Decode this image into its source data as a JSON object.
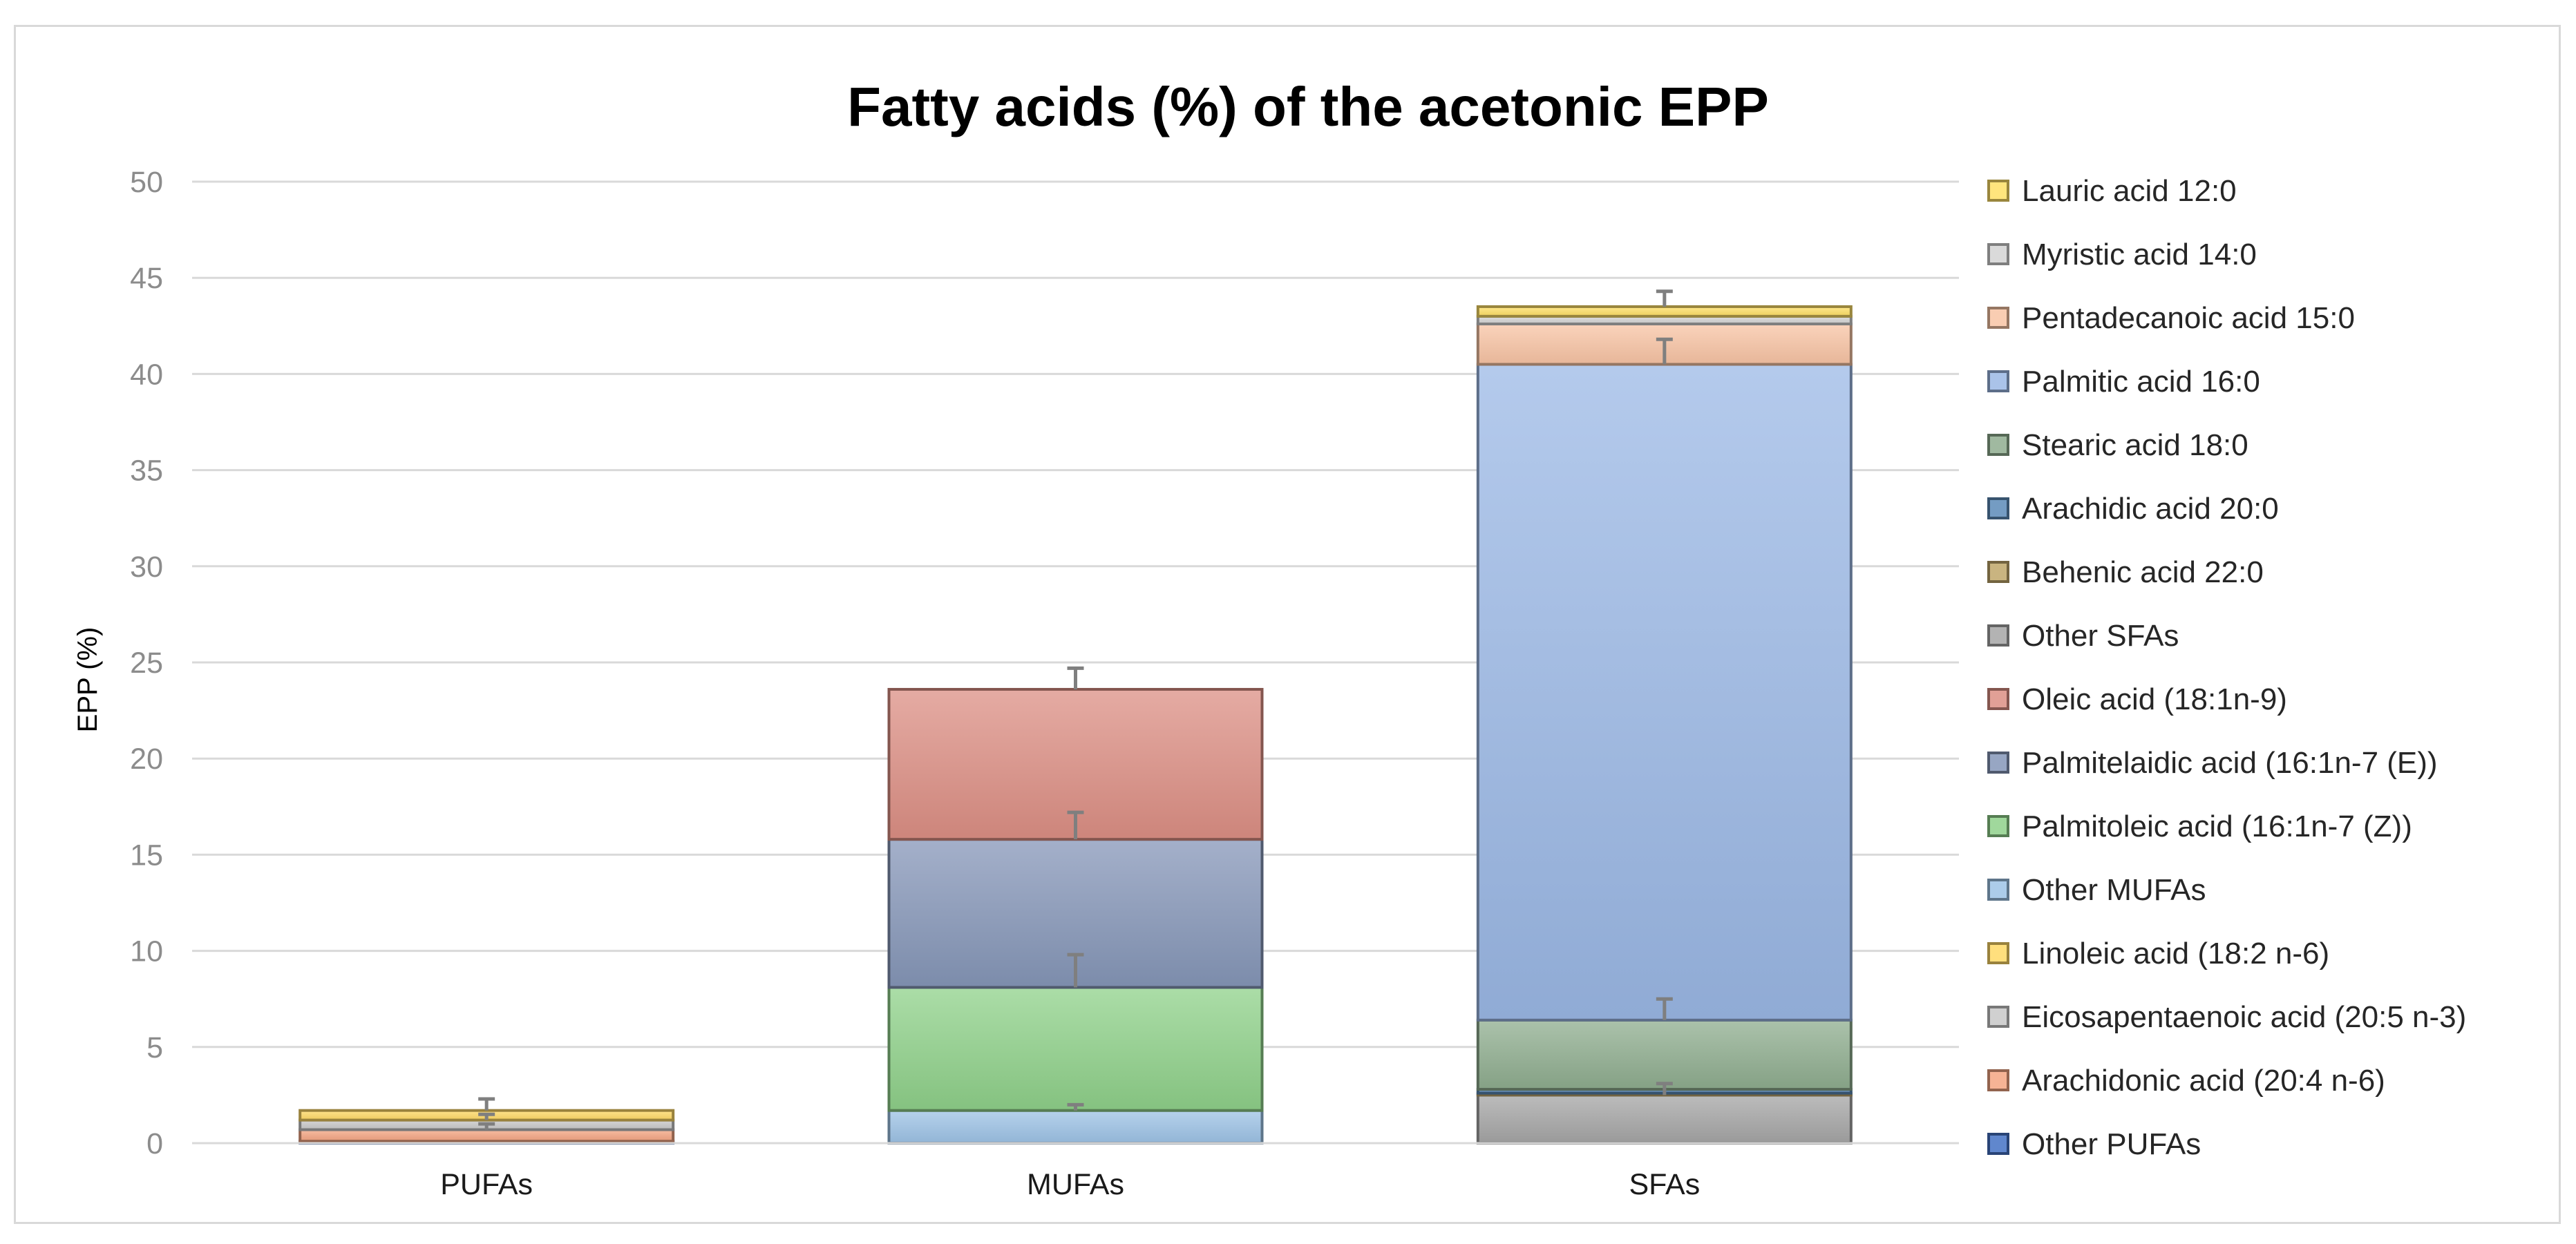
{
  "chart_data": {
    "type": "bar",
    "stacked": true,
    "title": "Fatty acids (%) of the acetonic EPP",
    "xlabel": "",
    "ylabel": "EPP (%)",
    "ylim": [
      0,
      50
    ],
    "yticks": [
      "0",
      "5",
      "10",
      "15",
      "20",
      "25",
      "30",
      "35",
      "40",
      "45",
      "50"
    ],
    "grid": true,
    "legend_position": "right",
    "categories": [
      "PUFAs",
      "MUFAs",
      "SFAs"
    ],
    "series": [
      {
        "name": "Other PUFAs",
        "color": "#4472c4",
        "values": [
          0.1,
          0,
          0
        ],
        "error": [
          0,
          0,
          0
        ]
      },
      {
        "name": "Arachidonic acid (20:4 n-6)",
        "color": "#f4a582",
        "values": [
          0.6,
          0,
          0
        ],
        "error": [
          0.3,
          0,
          0
        ]
      },
      {
        "name": "Eicosapentaenoic acid (20:5 n-3)",
        "color": "#c8c8c8",
        "values": [
          0.5,
          0,
          0
        ],
        "error": [
          0.3,
          0,
          0
        ]
      },
      {
        "name": "Linoleic acid (18:2 n-6)",
        "color": "#ffd966",
        "values": [
          0.5,
          0,
          0
        ],
        "error": [
          0.6,
          0,
          0
        ]
      },
      {
        "name": "Other MUFAs",
        "color": "#9dc3e6",
        "values": [
          0,
          1.7,
          0
        ],
        "error": [
          0,
          0.3,
          0
        ]
      },
      {
        "name": "Palmitoleic acid (16:1n-7 (Z))",
        "color": "#8fd18a",
        "values": [
          0,
          6.4,
          0
        ],
        "error": [
          0,
          1.7,
          0
        ]
      },
      {
        "name": "Palmitelaidic acid (16:1n-7 (E))",
        "color": "#8596b8",
        "values": [
          0,
          7.7,
          0
        ],
        "error": [
          0,
          1.4,
          0
        ]
      },
      {
        "name": "Oleic acid (18:1n-9)",
        "color": "#dc8f84",
        "values": [
          0,
          7.8,
          0
        ],
        "error": [
          0,
          1.1,
          0
        ]
      },
      {
        "name": "Other SFAs",
        "color": "#a6a6a6",
        "values": [
          0,
          0,
          2.5
        ],
        "error": [
          0,
          0,
          0.6
        ]
      },
      {
        "name": "Behenic acid 22:0",
        "color": "#bfa76a",
        "values": [
          0,
          0,
          0.1
        ],
        "error": [
          0,
          0,
          0
        ]
      },
      {
        "name": "Arachidic acid 20:0",
        "color": "#5b8ab8",
        "values": [
          0,
          0,
          0.2
        ],
        "error": [
          0,
          0,
          0
        ]
      },
      {
        "name": "Stearic acid 18:0",
        "color": "#8fad8f",
        "values": [
          0,
          0,
          3.6
        ],
        "error": [
          0,
          0,
          1.1
        ]
      },
      {
        "name": "Palmitic acid 16:0",
        "color": "#9bb8e5",
        "values": [
          0,
          0,
          34.1
        ],
        "error": [
          0,
          0,
          1.3
        ]
      },
      {
        "name": "Pentadecanoic acid 15:0",
        "color": "#f8c4a4",
        "values": [
          0,
          0,
          2.1
        ],
        "error": [
          0,
          0,
          0
        ]
      },
      {
        "name": "Myristic acid 14:0",
        "color": "#d3d3d3",
        "values": [
          0,
          0,
          0.4
        ],
        "error": [
          0,
          0,
          0
        ]
      },
      {
        "name": "Lauric acid 12:0",
        "color": "#ffe066",
        "values": [
          0,
          0,
          0.5
        ],
        "error": [
          0,
          0,
          0.8
        ]
      }
    ],
    "legend_order": [
      "Lauric acid 12:0",
      "Myristic acid 14:0",
      "Pentadecanoic acid 15:0",
      "Palmitic acid 16:0",
      "Stearic acid 18:0",
      "Arachidic acid 20:0",
      "Behenic acid 22:0",
      "Other SFAs",
      "Oleic acid (18:1n-9)",
      "Palmitelaidic acid (16:1n-7 (E))",
      "Palmitoleic acid (16:1n-7 (Z))",
      "Other MUFAs",
      "Linoleic acid (18:2 n-6)",
      "Eicosapentaenoic acid (20:5 n-3)",
      "Arachidonic acid (20:4 n-6)",
      "Other PUFAs"
    ]
  }
}
